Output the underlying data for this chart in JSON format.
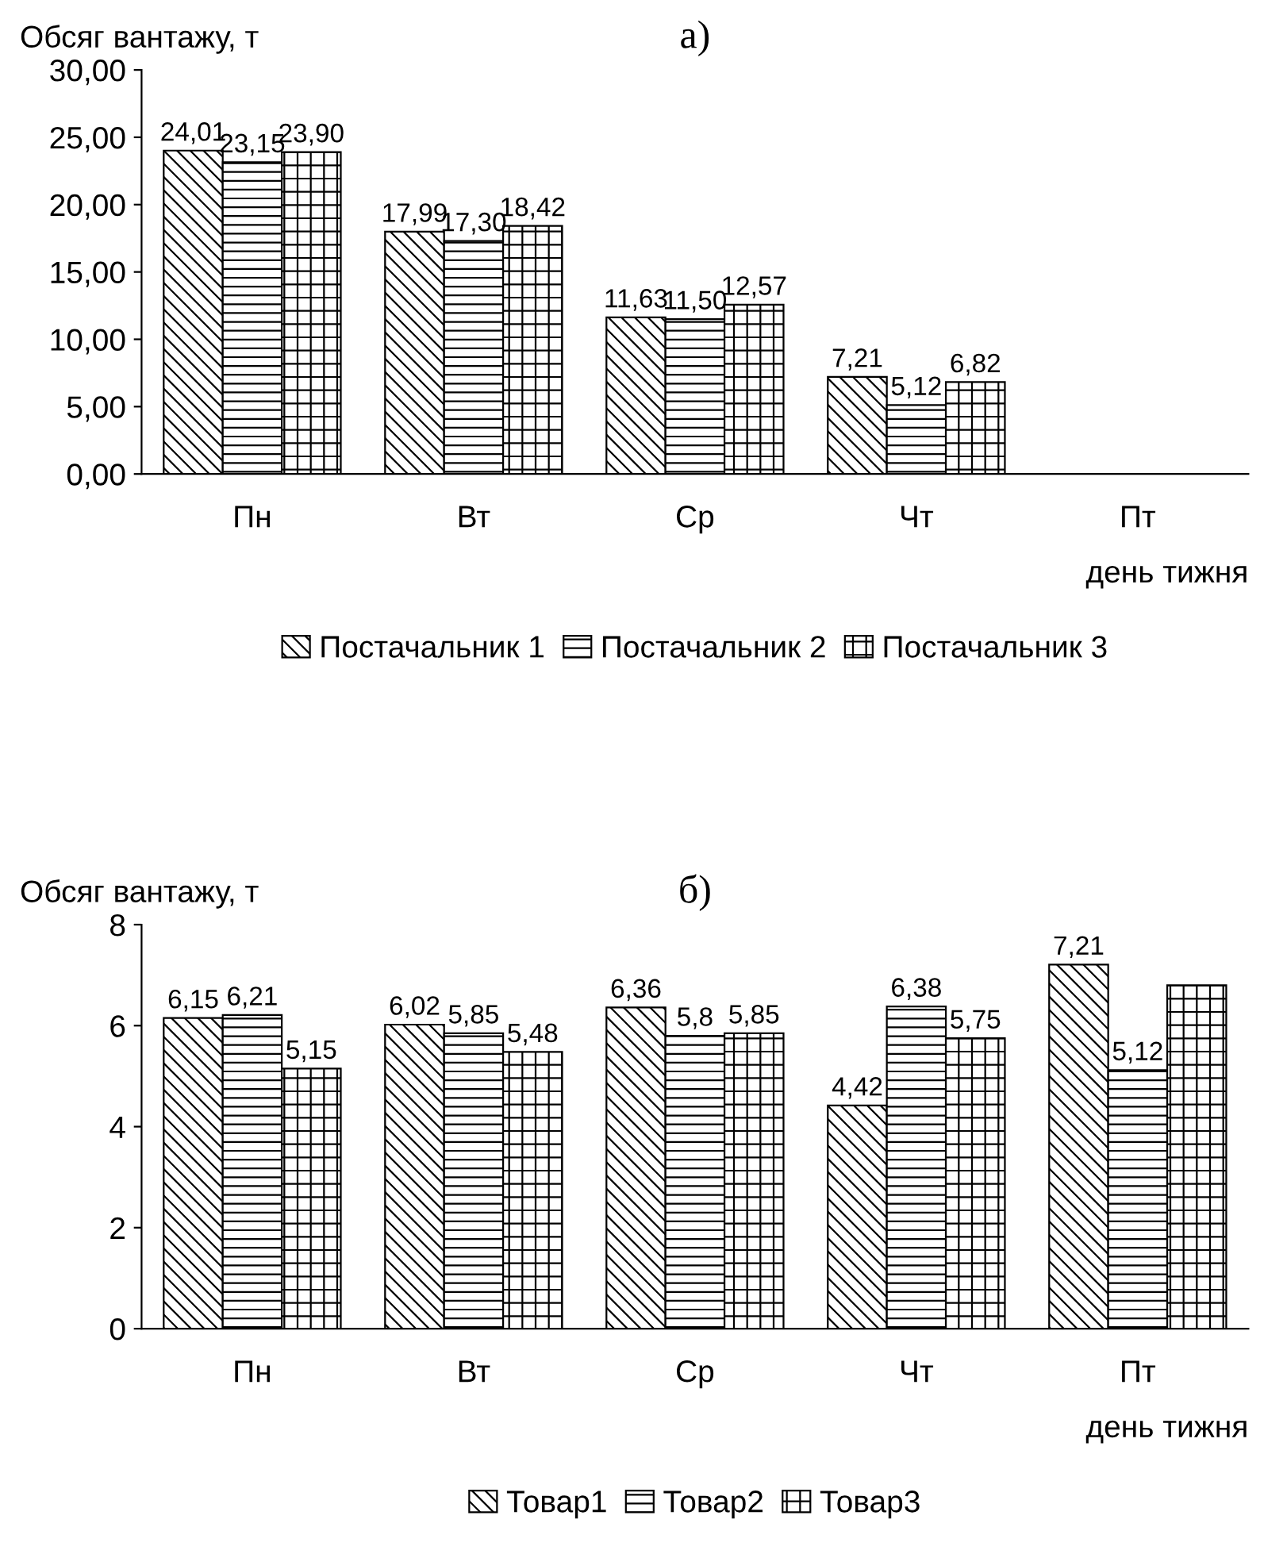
{
  "chart_data": [
    {
      "type": "bar",
      "title": "а)",
      "ylabel": "Обсяг вантажу, т",
      "xlabel": "день тижня",
      "categories": [
        "Пн",
        "Вт",
        "Ср",
        "Чт",
        "Пт"
      ],
      "series": [
        {
          "name": "Постачальник 1",
          "color": "#000000",
          "values": [
            24.01,
            17.99,
            11.63,
            7.21,
            null
          ],
          "value_labels": [
            "24,01",
            "17,99",
            "11,63",
            "7,21",
            null
          ]
        },
        {
          "name": "Постачальник 2",
          "color": "#000000",
          "values": [
            23.15,
            17.3,
            11.5,
            5.12,
            null
          ],
          "value_labels": [
            "23,15",
            "17,30",
            "11,50",
            "5,12",
            null
          ]
        },
        {
          "name": "Постачальник 3",
          "color": "#000000",
          "values": [
            23.9,
            18.42,
            12.57,
            6.82,
            null
          ],
          "value_labels": [
            "23,90",
            "18,42",
            "12,57",
            "6,82",
            null
          ]
        }
      ],
      "ylim": [
        0,
        30
      ],
      "yticks": [
        {
          "value": 0,
          "label": "0,00"
        },
        {
          "value": 5,
          "label": "5,00"
        },
        {
          "value": 10,
          "label": "10,00"
        },
        {
          "value": 15,
          "label": "15,00"
        },
        {
          "value": 20,
          "label": "20,00"
        },
        {
          "value": 25,
          "label": "25,00"
        },
        {
          "value": 30,
          "label": "30,00"
        }
      ],
      "grid": false,
      "legend": "bottom"
    },
    {
      "type": "bar",
      "title": "б)",
      "ylabel": "Обсяг вантажу, т",
      "xlabel": "день тижня",
      "categories": [
        "Пн",
        "Вт",
        "Ср",
        "Чт",
        "Пт"
      ],
      "series": [
        {
          "name": "Товар1",
          "color": "#000000",
          "values": [
            6.15,
            6.02,
            6.36,
            4.42,
            7.21
          ],
          "value_labels": [
            "6,15",
            "6,02",
            "6,36",
            "4,42",
            "7,21"
          ]
        },
        {
          "name": "Товар2",
          "color": "#000000",
          "values": [
            6.21,
            5.85,
            5.8,
            6.38,
            5.12
          ],
          "value_labels": [
            "6,21",
            "5,85",
            "5,8",
            "6,38",
            "5,12"
          ]
        },
        {
          "name": "Товар3",
          "color": "#000000",
          "values": [
            5.15,
            5.48,
            5.85,
            5.75,
            6.8
          ],
          "value_labels": [
            "5,15",
            "5,48",
            "5,85",
            "5,75",
            null
          ]
        }
      ],
      "ylim": [
        0,
        8
      ],
      "yticks": [
        0,
        2,
        4,
        6,
        8
      ],
      "grid": false,
      "legend": "bottom"
    }
  ]
}
